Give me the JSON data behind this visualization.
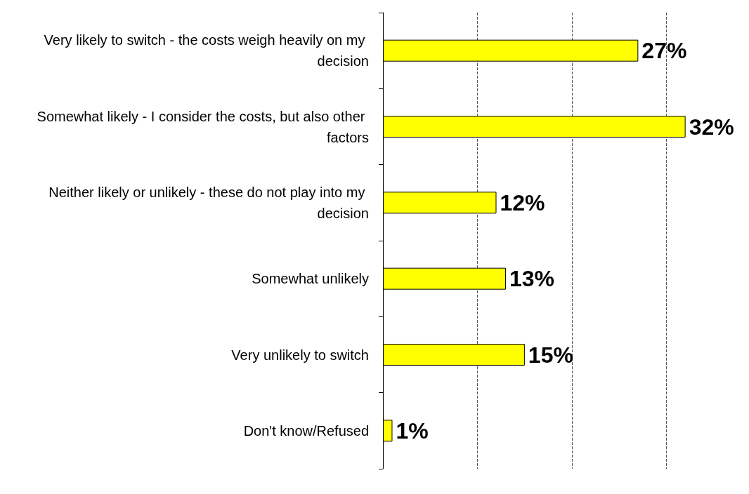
{
  "chart_data": {
    "type": "bar",
    "orientation": "horizontal",
    "categories": [
      "Very likely to switch - the costs weigh heavily on my decision",
      "Somewhat likely - I consider the costs, but also other factors",
      "Neither likely or unlikely - these do not play into my decision",
      "Somewhat unlikely",
      "Very unlikely to switch",
      "Don't know/Refused"
    ],
    "values": [
      27,
      32,
      12,
      13,
      15,
      1
    ],
    "value_labels": [
      "27%",
      "32%",
      "12%",
      "13%",
      "15%",
      "1%"
    ],
    "color": "#ffff00",
    "xticks": [
      {
        "value": 0,
        "label": null
      },
      {
        "value": 10,
        "label": null
      },
      {
        "value": 20,
        "label": null
      },
      {
        "value": 30,
        "label": null
      }
    ],
    "tick_labels": "y",
    "grid": "x"
  }
}
